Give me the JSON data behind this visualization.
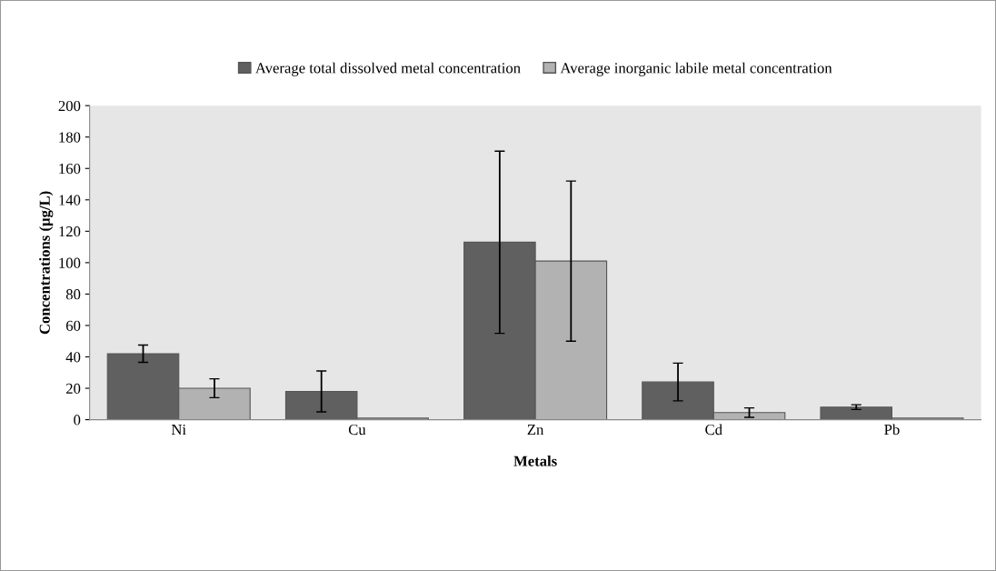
{
  "chart_data": {
    "type": "bar",
    "xlabel": "Metals",
    "ylabel": "Concentrations (µg/L)",
    "categories": [
      "Ni",
      "Cu",
      "Zn",
      "Cd",
      "Pb"
    ],
    "series": [
      {
        "name": "Average total dissolved metal concentration",
        "color": "#606060",
        "values": [
          42,
          18,
          113,
          24,
          8
        ],
        "errors": [
          5.5,
          13,
          58,
          12,
          1.5
        ]
      },
      {
        "name": "Average inorganic labile metal concentration",
        "color": "#b2b2b2",
        "values": [
          20,
          1,
          101,
          4.5,
          1
        ],
        "errors": [
          6,
          null,
          51,
          3,
          null
        ]
      }
    ],
    "ylim": [
      0,
      200
    ],
    "yticks": [
      0,
      20,
      40,
      60,
      80,
      100,
      120,
      140,
      160,
      180,
      200
    ],
    "grid": false,
    "legend": "top"
  }
}
